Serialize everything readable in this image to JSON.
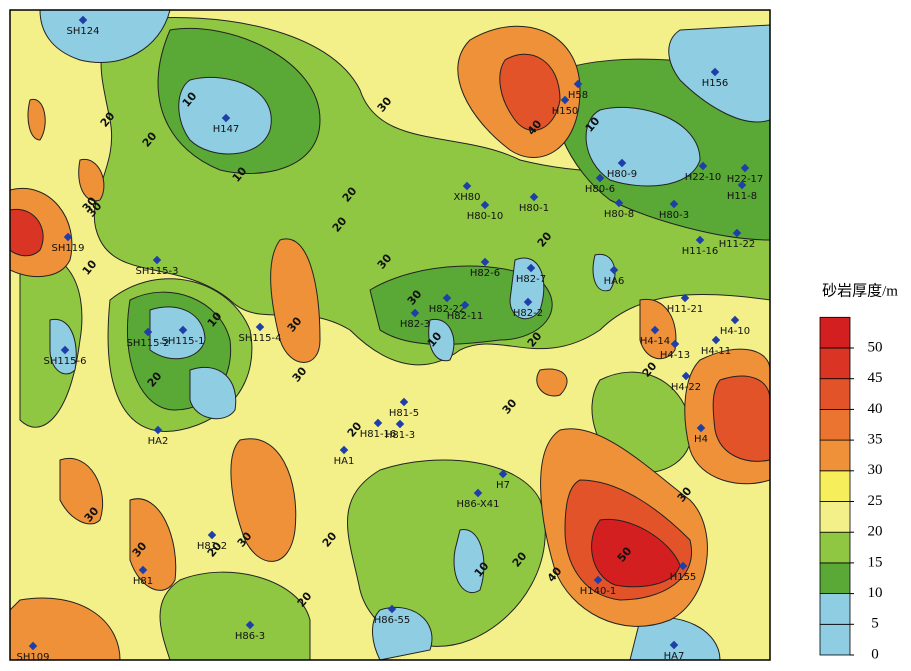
{
  "legend": {
    "title": "砂岩厚度/m",
    "levels": [
      0,
      5,
      10,
      15,
      20,
      25,
      30,
      35,
      40,
      45,
      50
    ],
    "colors": [
      "#8fcde2",
      "#8fcde2",
      "#5aa835",
      "#8fc742",
      "#f3f08a",
      "#f6ee5a",
      "#ef9138",
      "#eb7430",
      "#e2532a",
      "#d93424",
      "#d31f1f"
    ]
  },
  "wells": [
    "SH124",
    "H147",
    "H156",
    "H58",
    "H150",
    "H80-9",
    "H80-6",
    "H22-10",
    "H22-17",
    "H11-8",
    "XH80",
    "H80-10",
    "H80-1",
    "H80-8",
    "H80-3",
    "SH119",
    "H11-22",
    "H11-16",
    "SH115-3",
    "HA6",
    "H82-7",
    "H82-6",
    "H82-2",
    "H82-22",
    "H82-3",
    "H82-11",
    "H11-21",
    "H4-10",
    "H4-14",
    "H4-13",
    "H4-11",
    "H4-22",
    "SH115-2",
    "SH115-1",
    "SH115-4",
    "SH115-6",
    "H4",
    "HA2",
    "H81-5",
    "H81-3",
    "H81-16",
    "HA1",
    "H7",
    "H86-X41",
    "H81-2",
    "H81",
    "H140-1",
    "H155",
    "H86-55",
    "H86-3",
    "SH109",
    "HA7"
  ],
  "contour_labels": [
    10,
    20,
    30,
    40,
    30,
    10,
    20,
    30,
    10,
    20,
    30,
    10,
    20,
    30,
    20,
    30,
    10,
    20,
    30,
    20,
    10,
    20,
    30,
    20,
    30,
    20,
    30,
    40,
    50,
    30,
    20,
    10,
    20,
    30,
    20
  ]
}
